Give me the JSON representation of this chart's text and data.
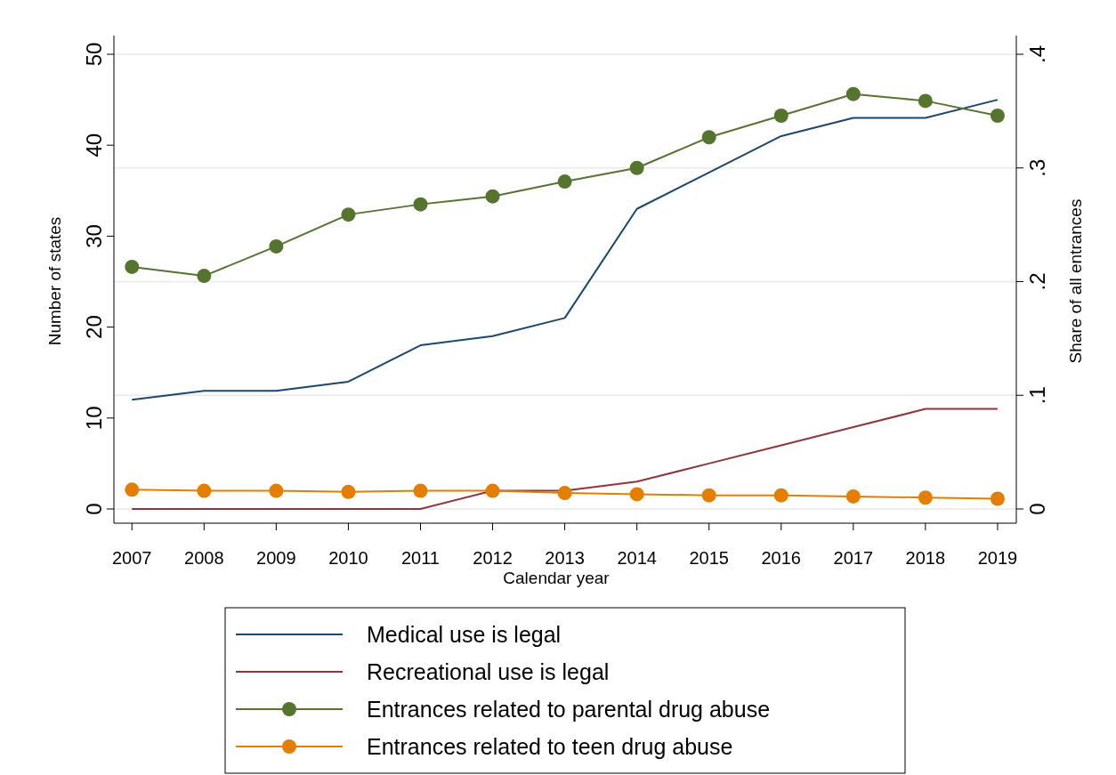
{
  "chart_data": {
    "type": "line",
    "xlabel": "Calendar year",
    "ylabel": "Number of states",
    "y2label": "Share of all entrances",
    "x": [
      2007,
      2008,
      2009,
      2010,
      2011,
      2012,
      2013,
      2014,
      2015,
      2016,
      2017,
      2018,
      2019
    ],
    "xlim": [
      2006.75,
      2019.26
    ],
    "xticks": [
      2007,
      2008,
      2009,
      2010,
      2011,
      2012,
      2013,
      2014,
      2015,
      2016,
      2017,
      2018,
      2019
    ],
    "ylim": [
      0,
      50
    ],
    "yticks": [
      0,
      10,
      20,
      30,
      40,
      50
    ],
    "y2lim": [
      0,
      0.4
    ],
    "y2ticks": [
      {
        "value": 0,
        "label": "0"
      },
      {
        "value": 0.1,
        "label": ".1"
      },
      {
        "value": 0.2,
        "label": ".2"
      },
      {
        "value": 0.3,
        "label": ".3"
      },
      {
        "value": 0.4,
        "label": ".4"
      }
    ],
    "grid": "y",
    "legend": "bottom",
    "series": [
      {
        "name": "Medical use is legal",
        "color": "#1a476f",
        "marker": "none",
        "values": [
          12,
          13,
          13,
          14,
          18,
          19,
          21,
          33,
          37,
          41,
          43,
          43,
          45
        ]
      },
      {
        "name": "Recreational use is legal",
        "color": "#90353b",
        "marker": "none",
        "values": [
          0,
          0,
          0,
          0,
          0,
          2,
          2,
          3,
          5,
          7,
          9,
          11,
          11
        ]
      },
      {
        "name": "Entrances related to parental drug abuse",
        "color": "#55752f",
        "marker": "circle",
        "axis": "y2",
        "values": [
          0.213,
          0.205,
          0.231,
          0.259,
          0.268,
          0.275,
          0.288,
          0.3,
          0.327,
          0.346,
          0.365,
          0.359,
          0.346
        ]
      },
      {
        "name": "Entrances related to teen drug abuse",
        "color": "#e37e00",
        "marker": "circle",
        "axis": "y2",
        "values": [
          0.017,
          0.016,
          0.016,
          0.015,
          0.016,
          0.016,
          0.014,
          0.013,
          0.012,
          0.012,
          0.011,
          0.01,
          0.009
        ]
      }
    ]
  }
}
